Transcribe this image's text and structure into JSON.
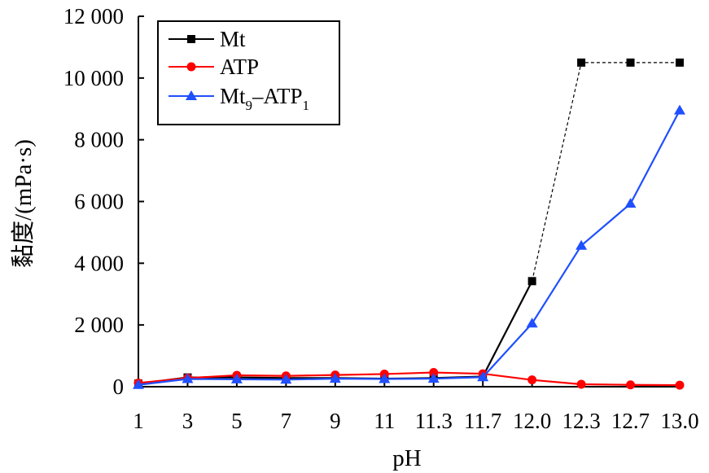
{
  "chart_data": {
    "type": "line",
    "xlabel": "pH",
    "ylabel": "黏度/(mPa·s)",
    "categories": [
      "1",
      "3",
      "5",
      "7",
      "9",
      "11",
      "11.3",
      "11.7",
      "12.0",
      "12.3",
      "12.7",
      "13.0"
    ],
    "y_ticks": [
      "0",
      "2 000",
      "4 000",
      "6 000",
      "8 000",
      "10 000",
      "12 000"
    ],
    "ylim": [
      0,
      12000
    ],
    "grid": false,
    "legend_position": "top-left",
    "series": [
      {
        "name": "Mt",
        "legend_main": "Mt",
        "color": "#000000",
        "marker": "square",
        "values": [
          100,
          300,
          300,
          280,
          280,
          260,
          280,
          330,
          3420,
          10500,
          10500,
          10500
        ],
        "dashed_from_index": 8
      },
      {
        "name": "ATP",
        "legend_main": "ATP",
        "color": "#ff0000",
        "marker": "circle",
        "values": [
          120,
          280,
          370,
          350,
          380,
          410,
          460,
          420,
          220,
          80,
          60,
          50
        ]
      },
      {
        "name": "Mt9–ATP1",
        "legend_parts": [
          "Mt",
          "9",
          "–ATP",
          "1"
        ],
        "color": "#1f4fff",
        "marker": "triangle",
        "values": [
          60,
          250,
          240,
          230,
          260,
          250,
          260,
          310,
          2050,
          4570,
          5930,
          8950
        ]
      }
    ]
  }
}
